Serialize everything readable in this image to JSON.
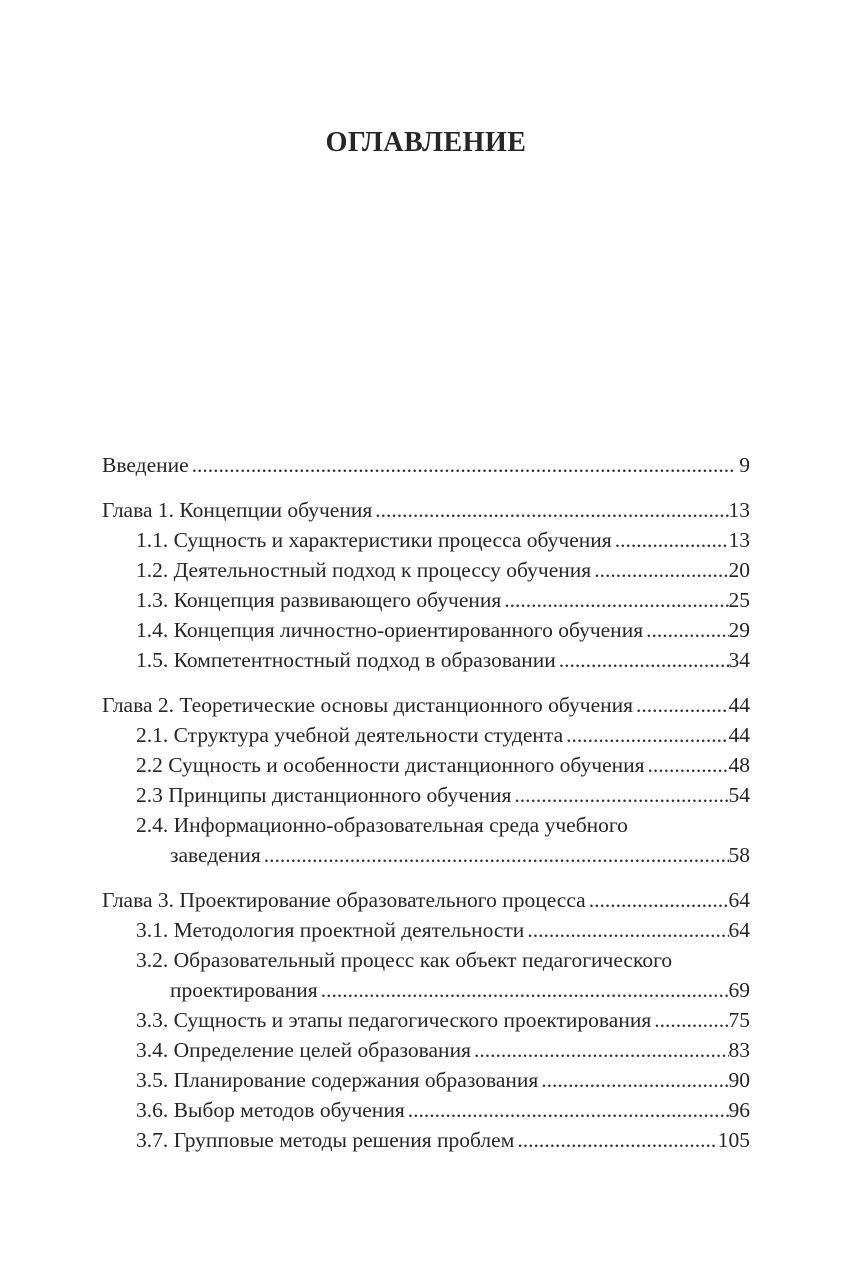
{
  "page": {
    "title": "ОГЛАВЛЕНИЕ",
    "background_color": "#ffffff",
    "text_color": "#262626"
  },
  "toc": {
    "entries": [
      {
        "label": "Введение",
        "page": " 9",
        "level": "chapter"
      },
      {
        "label": "Глава 1. Концепции обучения",
        "page": "13",
        "level": "chapter"
      },
      {
        "label": "1.1. Сущность и характеристики процесса обучения",
        "page": "13",
        "level": "sub"
      },
      {
        "label": "1.2. Деятельностный подход к процессу обучения",
        "page": "20",
        "level": "sub"
      },
      {
        "label": "1.3. Концепция развивающего обучения",
        "page": "25",
        "level": "sub"
      },
      {
        "label": "1.4. Концепция личностно-ориентированного обучения",
        "page": "29",
        "level": "sub"
      },
      {
        "label": "1.5. Компетентностный подход в образовании",
        "page": "34",
        "level": "sub"
      },
      {
        "label": "Глава 2. Теоретические основы дистанционного обучения",
        "page": "44",
        "level": "chapter"
      },
      {
        "label": "2.1. Структура учебной деятельности студента",
        "page": "44",
        "level": "sub"
      },
      {
        "label": "2.2 Сущность и особенности дистанционного обучения",
        "page": "48",
        "level": "sub"
      },
      {
        "label": "2.3 Принципы дистанционного обучения",
        "page": "54",
        "level": "sub"
      },
      {
        "label": "2.4. Информационно-образовательная среда учебного",
        "label2": "заведения",
        "page": "58",
        "level": "sub"
      },
      {
        "label": "Глава 3. Проектирование образовательного процесса",
        "page": "64",
        "level": "chapter"
      },
      {
        "label": "3.1. Методология проектной деятельности",
        "page": "64",
        "level": "sub"
      },
      {
        "label": "3.2. Образовательный процесс как объект педагогического",
        "label2": "проектирования",
        "page": "69",
        "level": "sub"
      },
      {
        "label": "3.3. Сущность и этапы педагогического проектирования",
        "page": "75",
        "level": "sub"
      },
      {
        "label": "3.4. Определение целей образования",
        "page": "83",
        "level": "sub"
      },
      {
        "label": "3.5. Планирование содержания образования",
        "page": "90",
        "level": "sub"
      },
      {
        "label": "3.6. Выбор методов обучения",
        "page": "96",
        "level": "sub"
      },
      {
        "label": "3.7. Групповые методы решения проблем",
        "page": "105",
        "level": "sub"
      }
    ]
  }
}
